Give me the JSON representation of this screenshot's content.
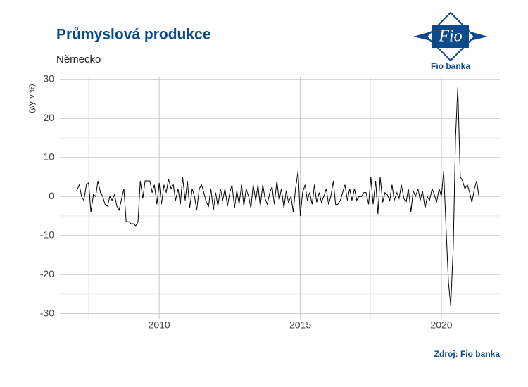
{
  "chart_data": {
    "type": "line",
    "title": "Průmyslová produkce",
    "subtitle": "Německo",
    "ylabel": "(y/y, v %)",
    "source": "Zdroj: Fio banka",
    "logo": "Fio",
    "brand": "Fio banka",
    "xlim": [
      2006.48,
      2022.07
    ],
    "xticks": [
      2010,
      2015,
      2020
    ],
    "ylim": [
      -31.5,
      30.5
    ],
    "yticks": [
      -30,
      -20,
      -10,
      0,
      10,
      20,
      30
    ],
    "grid": true,
    "x": [
      2007.08,
      2007.17,
      2007.25,
      2007.33,
      2007.42,
      2007.5,
      2007.58,
      2007.67,
      2007.75,
      2007.83,
      2007.92,
      2008.0,
      2008.08,
      2008.17,
      2008.25,
      2008.33,
      2008.42,
      2008.5,
      2008.58,
      2008.67,
      2008.75,
      2008.83,
      2008.92,
      2009.0,
      2009.08,
      2009.17,
      2009.25,
      2009.33,
      2009.42,
      2009.5,
      2009.58,
      2009.67,
      2009.75,
      2009.83,
      2009.92,
      2010.0,
      2010.08,
      2010.17,
      2010.25,
      2010.33,
      2010.42,
      2010.5,
      2010.58,
      2010.67,
      2010.75,
      2010.83,
      2010.92,
      2011.0,
      2011.08,
      2011.17,
      2011.25,
      2011.33,
      2011.42,
      2011.5,
      2011.58,
      2011.67,
      2011.75,
      2011.83,
      2011.92,
      2012.0,
      2012.08,
      2012.17,
      2012.25,
      2012.33,
      2012.42,
      2012.5,
      2012.58,
      2012.67,
      2012.75,
      2012.83,
      2012.92,
      2013.0,
      2013.08,
      2013.17,
      2013.25,
      2013.33,
      2013.42,
      2013.5,
      2013.58,
      2013.67,
      2013.75,
      2013.83,
      2013.92,
      2014.0,
      2014.08,
      2014.17,
      2014.25,
      2014.33,
      2014.42,
      2014.5,
      2014.58,
      2014.67,
      2014.75,
      2014.83,
      2014.92,
      2015.0,
      2015.08,
      2015.17,
      2015.25,
      2015.33,
      2015.42,
      2015.5,
      2015.58,
      2015.67,
      2015.75,
      2015.83,
      2015.92,
      2016.0,
      2016.08,
      2016.17,
      2016.25,
      2016.33,
      2016.42,
      2016.5,
      2016.58,
      2016.67,
      2016.75,
      2016.83,
      2016.92,
      2017.0,
      2017.08,
      2017.17,
      2017.25,
      2017.33,
      2017.42,
      2017.5,
      2017.58,
      2017.67,
      2017.75,
      2017.83,
      2017.92,
      2018.0,
      2018.08,
      2018.17,
      2018.25,
      2018.33,
      2018.42,
      2018.5,
      2018.58,
      2018.67,
      2018.75,
      2018.83,
      2018.92,
      2019.0,
      2019.08,
      2019.17,
      2019.25,
      2019.33,
      2019.42,
      2019.5,
      2019.58,
      2019.67,
      2019.75,
      2019.83,
      2019.92,
      2020.0,
      2020.08,
      2020.17,
      2020.25,
      2020.33,
      2020.42,
      2020.5,
      2020.58,
      2020.67,
      2020.75,
      2020.83,
      2020.92,
      2021.0,
      2021.08,
      2021.17,
      2021.25,
      2021.33
    ],
    "series": [
      {
        "color": "#000000",
        "values": [
          1.5,
          3,
          0,
          -1,
          3,
          3.5,
          -4,
          0.5,
          0,
          4,
          1,
          0,
          -2,
          -2.5,
          0,
          -1,
          0.5,
          -2.5,
          -3.5,
          -0.5,
          2,
          -6.5,
          -6.5,
          -7,
          -7,
          -7.5,
          -6.5,
          4,
          -0.5,
          4,
          4,
          4,
          1,
          3,
          -2,
          3.5,
          -2,
          3,
          1,
          4.5,
          2,
          3,
          -1,
          2,
          -2,
          5,
          -1,
          4,
          -3,
          2,
          0,
          -3.5,
          2,
          3,
          1,
          -1.5,
          -2.5,
          2,
          -3.5,
          1,
          -2.5,
          2,
          -1,
          2,
          -2.5,
          1,
          3,
          -3,
          1.5,
          -2,
          3,
          -2.5,
          2,
          0,
          -3,
          3,
          -1,
          3,
          -2.5,
          3,
          -0.5,
          -2,
          1,
          2.5,
          -2,
          4,
          -1,
          2,
          -3,
          1.5,
          -1.5,
          0,
          -4,
          2,
          6.5,
          -5,
          1,
          3,
          -1,
          1,
          -2,
          3,
          -1.5,
          1,
          -1.5,
          0,
          2,
          -2,
          0,
          4,
          -2,
          -2,
          -1,
          1,
          3,
          -1,
          2,
          -1,
          2,
          -1,
          0,
          0,
          1,
          1,
          -2,
          5,
          -2,
          4,
          -4.5,
          5,
          -1.5,
          1,
          0.5,
          -1,
          3,
          -1,
          1,
          -0.5,
          3,
          -0.5,
          -1.5,
          2,
          -4,
          1.5,
          0,
          2,
          -1,
          1.5,
          -3,
          0,
          -1,
          2,
          0.5,
          -1.5,
          2,
          0,
          6.5,
          -9,
          -22,
          -28,
          -13,
          15,
          28,
          5,
          4,
          2,
          3,
          1,
          -1.5,
          2,
          4,
          0
        ]
      }
    ]
  }
}
